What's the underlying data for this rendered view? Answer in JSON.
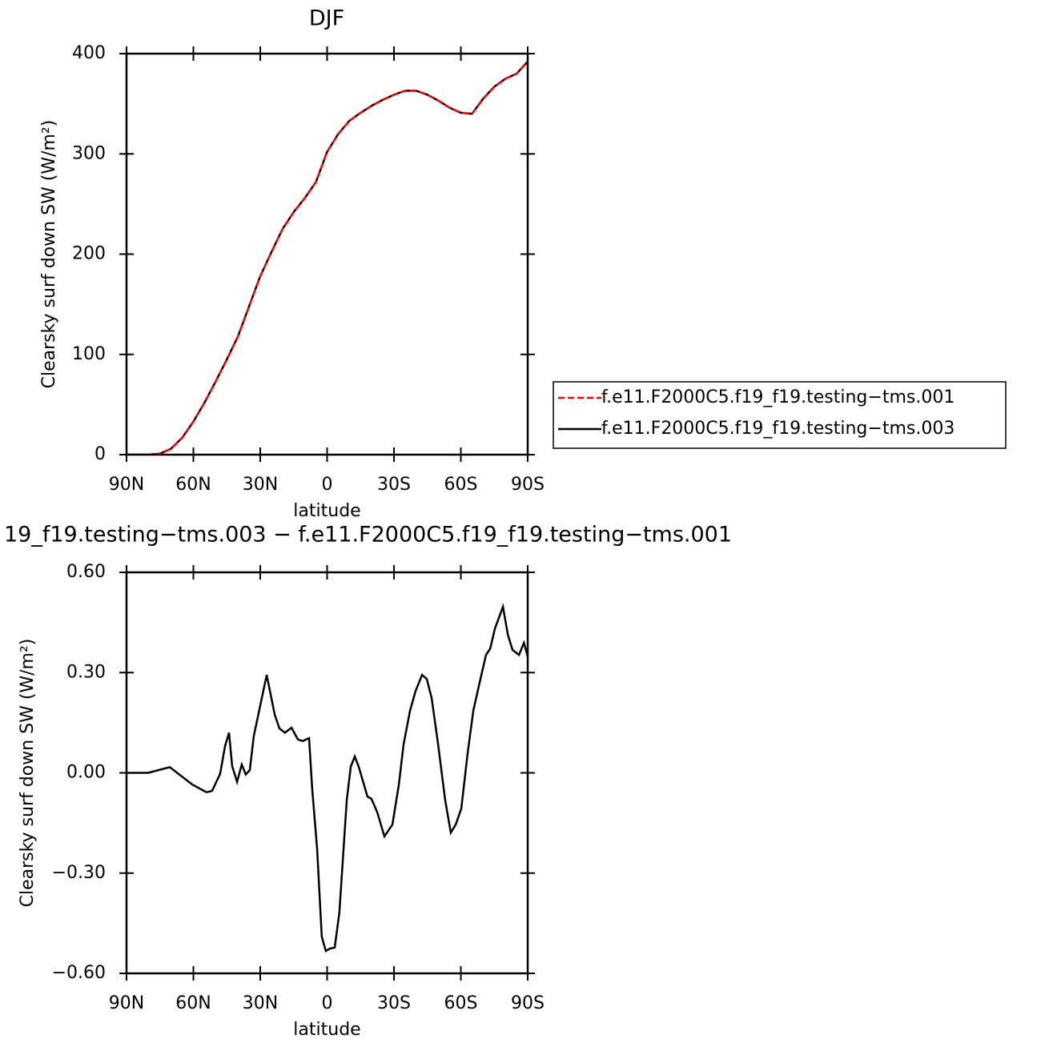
{
  "chart_data": [
    {
      "type": "line",
      "title": "DJF",
      "xlabel": "latitude",
      "ylabel": "Clearsky surf down SW (W/m²)",
      "xlim": [
        90,
        -90
      ],
      "ylim": [
        0,
        400
      ],
      "xticks": [
        {
          "value": 90,
          "label": "90N"
        },
        {
          "value": 60,
          "label": "60N"
        },
        {
          "value": 30,
          "label": "30N"
        },
        0,
        {
          "value": -30,
          "label": "30S"
        },
        {
          "value": -60,
          "label": "60S"
        },
        {
          "value": -90,
          "label": "90S"
        }
      ],
      "yticks": [
        0,
        100,
        200,
        300,
        400
      ],
      "legend": "right",
      "x": [
        90,
        85,
        80,
        75,
        70,
        65,
        60,
        55,
        50,
        45,
        40,
        35,
        30,
        25,
        20,
        15,
        10,
        5,
        0,
        -5,
        -10,
        -15,
        -20,
        -25,
        -30,
        -35,
        -40,
        -45,
        -50,
        -55,
        -60,
        -65,
        -70,
        -75,
        -80,
        -85,
        -90
      ],
      "series": [
        {
          "name": "f.e11.F2000C5.f19_f19.testing−tms.001",
          "color": "#ff0000",
          "linestyle": "dashed",
          "values": [
            0,
            0,
            0,
            1,
            6,
            17,
            33,
            52,
            73,
            95,
            118,
            148,
            178,
            202,
            225,
            242,
            256,
            272,
            302,
            320,
            333,
            341,
            348,
            354,
            359,
            363,
            363,
            359,
            353,
            346,
            341,
            340,
            355,
            367,
            375,
            380,
            392
          ]
        },
        {
          "name": "f.e11.F2000C5.f19_f19.testing−tms.003",
          "color": "#000000",
          "linestyle": "solid",
          "values": [
            0,
            0,
            0,
            1,
            6,
            17,
            33,
            52,
            73,
            95,
            118,
            148,
            178,
            202,
            225,
            242,
            256,
            272,
            302,
            320,
            333,
            341,
            348,
            354,
            359,
            363,
            363,
            359,
            353,
            346,
            341,
            340,
            355,
            367,
            375,
            380,
            392
          ]
        }
      ]
    },
    {
      "type": "line",
      "title": "19_f19.testing−tms.003 − f.e11.F2000C5.f19_f19.testing−tms.001",
      "xlabel": "latitude",
      "ylabel": "Clearsky surf down SW (W/m²)",
      "xlim": [
        90,
        -90
      ],
      "ylim": [
        -0.6,
        0.6
      ],
      "xticks": [
        {
          "value": 90,
          "label": "90N"
        },
        {
          "value": 60,
          "label": "60N"
        },
        {
          "value": 30,
          "label": "30N"
        },
        0,
        {
          "value": -30,
          "label": "30S"
        },
        {
          "value": -60,
          "label": "60S"
        },
        {
          "value": -90,
          "label": "90S"
        }
      ],
      "yticks": [
        {
          "value": -0.6,
          "label": "−0.60"
        },
        {
          "value": -0.3,
          "label": "−0.30"
        },
        {
          "value": 0,
          "label": "0.00"
        },
        {
          "value": 0.3,
          "label": "0.30"
        },
        {
          "value": 0.6,
          "label": "0.60"
        }
      ],
      "x": [
        90,
        80.3,
        70.6,
        60.5,
        54.1,
        51.6,
        48.0,
        45.8,
        44.0,
        42.6,
        40.4,
        38.3,
        36.5,
        34.7,
        32.9,
        27.1,
        23.5,
        21.4,
        18.9,
        16.0,
        13.1,
        11.0,
        8.1,
        6.7,
        4.5,
        2.4,
        0.6,
        -1.2,
        -3.4,
        -5.5,
        -8.8,
        -10.6,
        -12.4,
        -14.2,
        -18.1,
        -19.9,
        -22.5,
        -25.7,
        -29.3,
        -32.2,
        -34.3,
        -37.2,
        -39.7,
        -42.6,
        -44.7,
        -46.9,
        -49.8,
        -53.0,
        -55.5,
        -57.7,
        -60.2,
        -63.1,
        -65.6,
        -68.8,
        -71.3,
        -73.2,
        -75.3,
        -78.9,
        -81.1,
        -83.2,
        -86.1,
        -88.3,
        -90
      ],
      "series": [
        {
          "color": "#000000",
          "linestyle": "solid",
          "values": [
            0,
            0,
            0.017,
            -0.035,
            -0.058,
            -0.054,
            -0.003,
            0.08,
            0.12,
            0.02,
            -0.027,
            0.025,
            -0.005,
            0.008,
            0.11,
            0.293,
            0.174,
            0.133,
            0.12,
            0.135,
            0.1,
            0.095,
            0.104,
            -0.047,
            -0.226,
            -0.49,
            -0.533,
            -0.526,
            -0.523,
            -0.418,
            -0.083,
            0.018,
            0.049,
            0.018,
            -0.071,
            -0.078,
            -0.118,
            -0.19,
            -0.155,
            -0.035,
            0.085,
            0.186,
            0.245,
            0.293,
            0.281,
            0.224,
            0.085,
            -0.083,
            -0.179,
            -0.155,
            -0.107,
            0.061,
            0.186,
            0.281,
            0.353,
            0.372,
            0.432,
            0.497,
            0.413,
            0.368,
            0.353,
            0.389,
            0.348
          ]
        }
      ]
    }
  ]
}
